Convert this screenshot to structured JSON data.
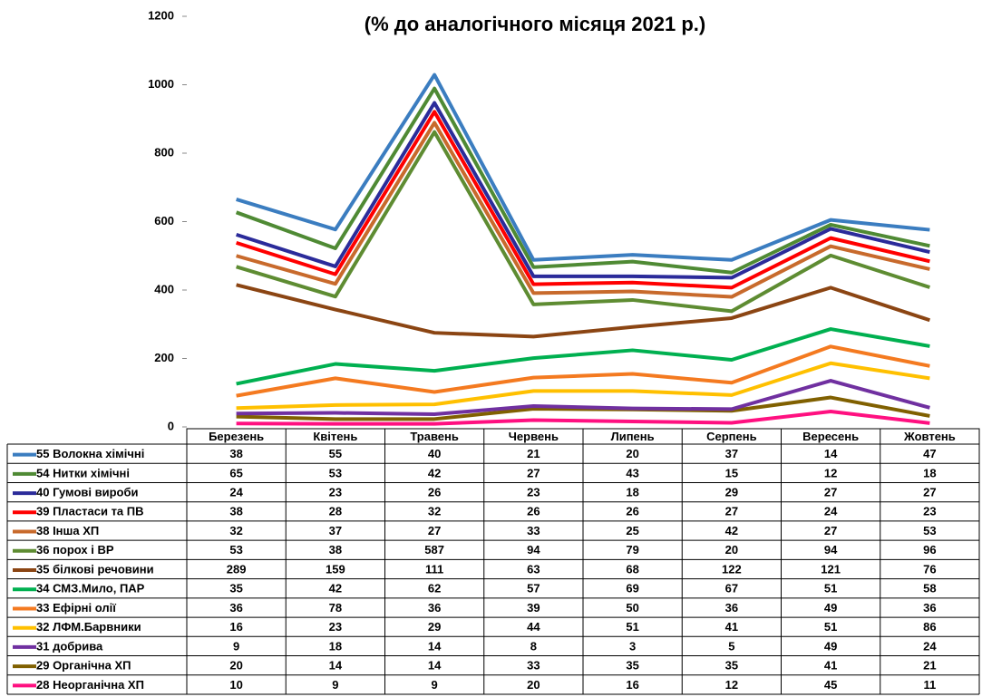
{
  "chart_data": {
    "type": "line",
    "stacked": true,
    "title": "(% до аналогічного місяця 2021 р.)",
    "categories": [
      "Березень",
      "Квітень",
      "Травень",
      "Червень",
      "Липень",
      "Серпень",
      "Вересень",
      "Жовтень"
    ],
    "ylim": [
      0,
      1200
    ],
    "yticks": [
      0,
      200,
      400,
      600,
      800,
      1000,
      1200
    ],
    "grid": false,
    "series": [
      {
        "name": "55  Волокна хімічні",
        "color": "#3b7dc0",
        "values": [
          38,
          55,
          40,
          21,
          20,
          37,
          14,
          47
        ]
      },
      {
        "name": "54 Нитки  хімічні",
        "color": "#4f8a34",
        "values": [
          65,
          53,
          42,
          27,
          43,
          15,
          12,
          18
        ]
      },
      {
        "name": "40  Гумові вироби",
        "color": "#2b2b9a",
        "values": [
          24,
          23,
          26,
          23,
          18,
          29,
          27,
          27
        ]
      },
      {
        "name": "39  Пластаси та ПВ",
        "color": "#ff0000",
        "values": [
          38,
          28,
          32,
          26,
          26,
          27,
          24,
          23
        ]
      },
      {
        "name": "38  Інша ХП",
        "color": "#c86a2c",
        "values": [
          32,
          37,
          27,
          33,
          25,
          42,
          27,
          53
        ]
      },
      {
        "name": "36 порох і ВР",
        "color": "#5e8c32",
        "values": [
          53,
          38,
          587,
          94,
          79,
          20,
          94,
          96
        ]
      },
      {
        "name": "35 білкові речовини",
        "color": "#8b4513",
        "values": [
          289,
          159,
          111,
          63,
          68,
          122,
          121,
          76
        ]
      },
      {
        "name": "34  СМЗ.Мило, ПАР",
        "color": "#00b050",
        "values": [
          35,
          42,
          62,
          57,
          69,
          67,
          51,
          58
        ]
      },
      {
        "name": "33 Ефірні олії",
        "color": "#f47a20",
        "values": [
          36,
          78,
          36,
          39,
          50,
          36,
          49,
          36
        ]
      },
      {
        "name": "32 ЛФМ.Барвники",
        "color": "#ffc000",
        "values": [
          16,
          23,
          29,
          44,
          51,
          41,
          51,
          86
        ]
      },
      {
        "name": "31 добрива",
        "color": "#7030a0",
        "values": [
          9,
          18,
          14,
          8,
          3,
          5,
          49,
          24
        ]
      },
      {
        "name": "29 Органічна ХП",
        "color": "#806000",
        "values": [
          20,
          14,
          14,
          33,
          35,
          35,
          41,
          21
        ]
      },
      {
        "name": "28  Неорганічна ХП",
        "color": "#ff1080",
        "values": [
          10,
          9,
          9,
          20,
          16,
          12,
          45,
          11
        ]
      }
    ]
  }
}
